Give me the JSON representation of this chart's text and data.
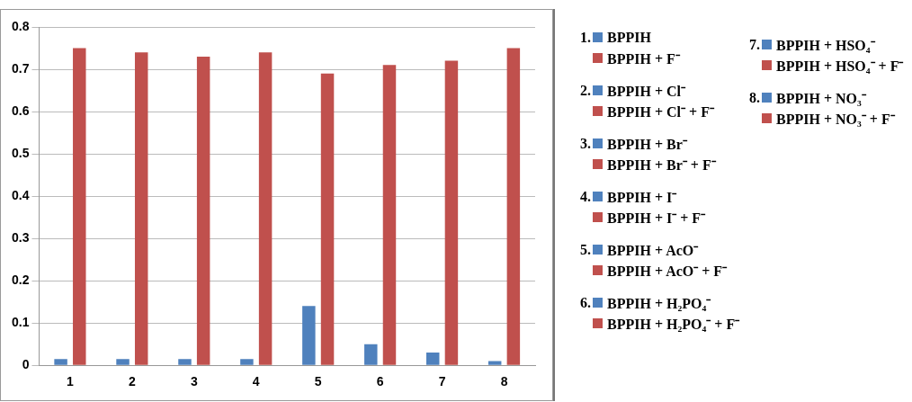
{
  "chart_data": {
    "type": "bar",
    "categories": [
      "1",
      "2",
      "3",
      "4",
      "5",
      "6",
      "7",
      "8"
    ],
    "series": [
      {
        "color": "#4f81bd",
        "values": [
          0.015,
          0.015,
          0.015,
          0.015,
          0.14,
          0.05,
          0.03,
          0.01
        ]
      },
      {
        "color": "#c0504d",
        "values": [
          0.75,
          0.74,
          0.73,
          0.74,
          0.69,
          0.71,
          0.72,
          0.75
        ]
      }
    ],
    "ylim": [
      0,
      0.8
    ],
    "yticks": [
      0,
      0.1,
      0.2,
      0.3,
      0.4,
      0.5,
      0.6,
      0.7,
      0.8
    ],
    "grid": "y",
    "annotations": [
      "1.",
      "BPPIH",
      "BPPIH + F⁻",
      "2.",
      "BPPIH + Cl⁻",
      "BPPIH + Cl⁻ + F⁻",
      "3.",
      "BPPIH + Br⁻",
      "BPPIH + Br⁻ + F⁻",
      "4.",
      "BPPIH + I⁻",
      "BPPIH + I⁻ + F⁻",
      "5.",
      "BPPIH + AcO⁻",
      "BPPIH + AcO⁻ + F⁻",
      "6.",
      "BPPIH + H₂PO₄⁻",
      "BPPIH + H₂PO₄⁻ + F⁻",
      "7.",
      "BPPIH + HSO₄⁻",
      "BPPIH + HSO₄⁻ + F⁻",
      "8.",
      "BPPIH + NO₃⁻",
      "BPPIH + NO₃⁻ + F⁻"
    ]
  }
}
